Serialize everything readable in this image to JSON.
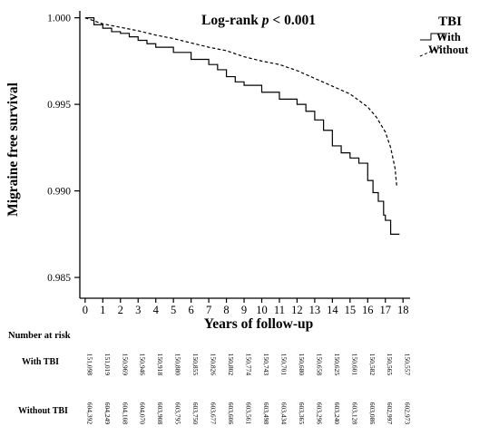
{
  "chart_data": {
    "type": "line",
    "title_prefix": "Log-rank ",
    "title_p": "p",
    "title_suffix": " < 0.001",
    "xlabel": "Years of follow-up",
    "ylabel": "Migraine free survival",
    "xlim": [
      -0.3,
      18.4
    ],
    "ylim": [
      0.9838,
      1.0004
    ],
    "x_ticks": [
      "0",
      "1",
      "2",
      "3",
      "4",
      "5",
      "6",
      "7",
      "8",
      "9",
      "10",
      "11",
      "12",
      "13",
      "14",
      "15",
      "16",
      "17",
      "18"
    ],
    "y_ticks": [
      "0.985",
      "0.990",
      "0.995",
      "1.000"
    ],
    "grid": false,
    "legend_title": "TBI",
    "legend_position": "top-right",
    "series": [
      {
        "name": "With",
        "style": "solid",
        "step": true,
        "points": [
          [
            0,
            1.0
          ],
          [
            0.5,
            0.9996
          ],
          [
            1,
            0.9994
          ],
          [
            1.5,
            0.9992
          ],
          [
            2,
            0.9991
          ],
          [
            2.5,
            0.9989
          ],
          [
            3,
            0.9987
          ],
          [
            3.5,
            0.9985
          ],
          [
            4,
            0.9983
          ],
          [
            5,
            0.998
          ],
          [
            6,
            0.9976
          ],
          [
            7,
            0.9973
          ],
          [
            7.5,
            0.997
          ],
          [
            8,
            0.9966
          ],
          [
            8.5,
            0.9963
          ],
          [
            9,
            0.9961
          ],
          [
            10,
            0.9957
          ],
          [
            11,
            0.9953
          ],
          [
            12,
            0.995
          ],
          [
            12.5,
            0.9946
          ],
          [
            13,
            0.9941
          ],
          [
            13.5,
            0.9935
          ],
          [
            14,
            0.9926
          ],
          [
            14.5,
            0.9922
          ],
          [
            15,
            0.9919
          ],
          [
            15.5,
            0.9916
          ],
          [
            16,
            0.9906
          ],
          [
            16.3,
            0.9899
          ],
          [
            16.6,
            0.9894
          ],
          [
            16.9,
            0.9886
          ],
          [
            17.0,
            0.9883
          ],
          [
            17.3,
            0.9875
          ],
          [
            17.8,
            0.9875
          ]
        ]
      },
      {
        "name": "Without",
        "style": "dashed",
        "step": false,
        "points": [
          [
            0,
            1.0
          ],
          [
            1,
            0.99965
          ],
          [
            2,
            0.99945
          ],
          [
            3,
            0.99925
          ],
          [
            4,
            0.999
          ],
          [
            5,
            0.9988
          ],
          [
            6,
            0.99855
          ],
          [
            7,
            0.9983
          ],
          [
            8,
            0.9981
          ],
          [
            9,
            0.99775
          ],
          [
            10,
            0.9975
          ],
          [
            11,
            0.9973
          ],
          [
            12,
            0.99695
          ],
          [
            13,
            0.9965
          ],
          [
            14,
            0.99605
          ],
          [
            15,
            0.9956
          ],
          [
            16,
            0.99485
          ],
          [
            16.5,
            0.99425
          ],
          [
            17,
            0.9934
          ],
          [
            17.3,
            0.9925
          ],
          [
            17.55,
            0.9913
          ],
          [
            17.65,
            0.9902
          ]
        ]
      }
    ],
    "risk_table": {
      "title": "Number at risk",
      "rows": [
        {
          "label": "With TBI",
          "values": [
            "151,098",
            "151,019",
            "150,969",
            "150,946",
            "150,918",
            "150,880",
            "150,855",
            "150,826",
            "150,802",
            "150,774",
            "150,743",
            "150,701",
            "150,680",
            "150,658",
            "150,625",
            "150,601",
            "150,582",
            "150,565",
            "150,557"
          ]
        },
        {
          "label": "Without TBI",
          "values": [
            "604,392",
            "604,249",
            "604,108",
            "604,070",
            "603,908",
            "603,795",
            "603,750",
            "603,677",
            "603,606",
            "603,561",
            "603,498",
            "603,434",
            "603,365",
            "603,296",
            "603,240",
            "603,128",
            "603,086",
            "602,997",
            "602,973"
          ]
        }
      ]
    }
  }
}
